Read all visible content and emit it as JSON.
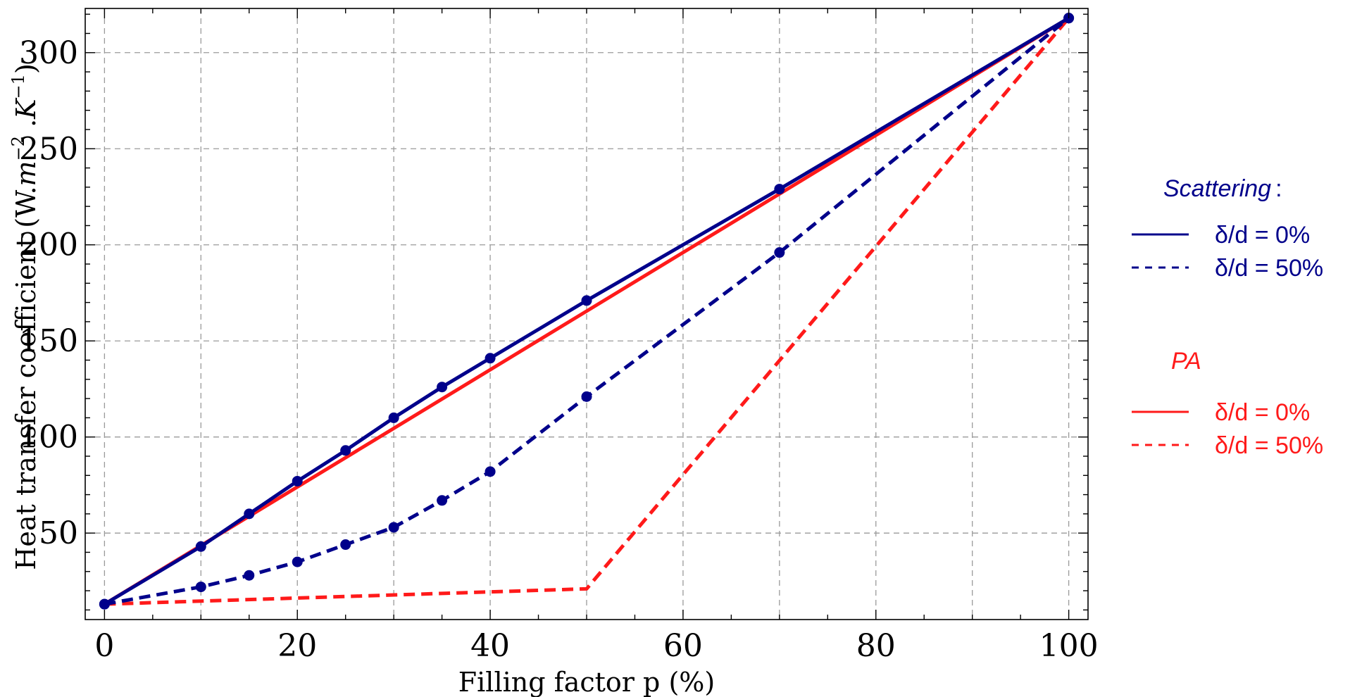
{
  "chart_data": {
    "type": "line",
    "title": "",
    "xlabel": "Filling factor p (%)",
    "ylabel_parts": {
      "prefix": "Heat transfer coefficient (W.",
      "m": "m",
      "m_exp": "−2",
      "dot": " .",
      "k": "K",
      "k_exp": "−1",
      "suffix": ")"
    },
    "xlim": [
      -2,
      102
    ],
    "ylim": [
      5,
      323
    ],
    "x_ticks": [
      0,
      20,
      40,
      60,
      80,
      100
    ],
    "x_tick_labels": [
      "0",
      "20",
      "40",
      "60",
      "80",
      "100"
    ],
    "y_ticks": [
      50,
      100,
      150,
      200,
      250,
      300
    ],
    "y_tick_labels": [
      "50",
      "100",
      "150",
      "200",
      "250",
      "300"
    ],
    "x_grid": [
      0,
      10,
      20,
      30,
      40,
      50,
      60,
      70,
      80,
      90,
      100
    ],
    "y_grid": [
      50,
      100,
      150,
      200,
      250,
      300
    ],
    "grid": true,
    "legend_position": "right",
    "colors": {
      "scattering": "#00008b",
      "pa": "#ff1a1a"
    },
    "series": [
      {
        "group": "Scattering",
        "style": "solid",
        "markers": true,
        "x": [
          0,
          10,
          15,
          20,
          25,
          30,
          35,
          40,
          50,
          70,
          100
        ],
        "y": [
          13,
          43,
          60,
          77,
          93,
          110,
          126,
          141,
          171,
          229,
          318
        ]
      },
      {
        "group": "Scattering",
        "style": "dashed",
        "markers": true,
        "x": [
          0,
          10,
          15,
          20,
          25,
          30,
          35,
          40,
          50,
          70,
          100
        ],
        "y": [
          13,
          22,
          28,
          35,
          44,
          53,
          67,
          82,
          121,
          196,
          318
        ]
      },
      {
        "group": "PA",
        "style": "solid",
        "markers": false,
        "x": [
          0,
          100
        ],
        "y": [
          13,
          318
        ]
      },
      {
        "group": "PA",
        "style": "dashed",
        "markers": false,
        "x": [
          0,
          50,
          100
        ],
        "y": [
          13,
          21,
          318
        ]
      }
    ],
    "legend": {
      "scattering_title": "Scattering",
      "scattering_colon": ":",
      "pa_title": "PA",
      "scattering_solid": "δ/d = 0%",
      "scattering_dashed": "δ/d = 50%",
      "pa_solid": "δ/d = 0%",
      "pa_dashed": "δ/d = 50%"
    }
  }
}
